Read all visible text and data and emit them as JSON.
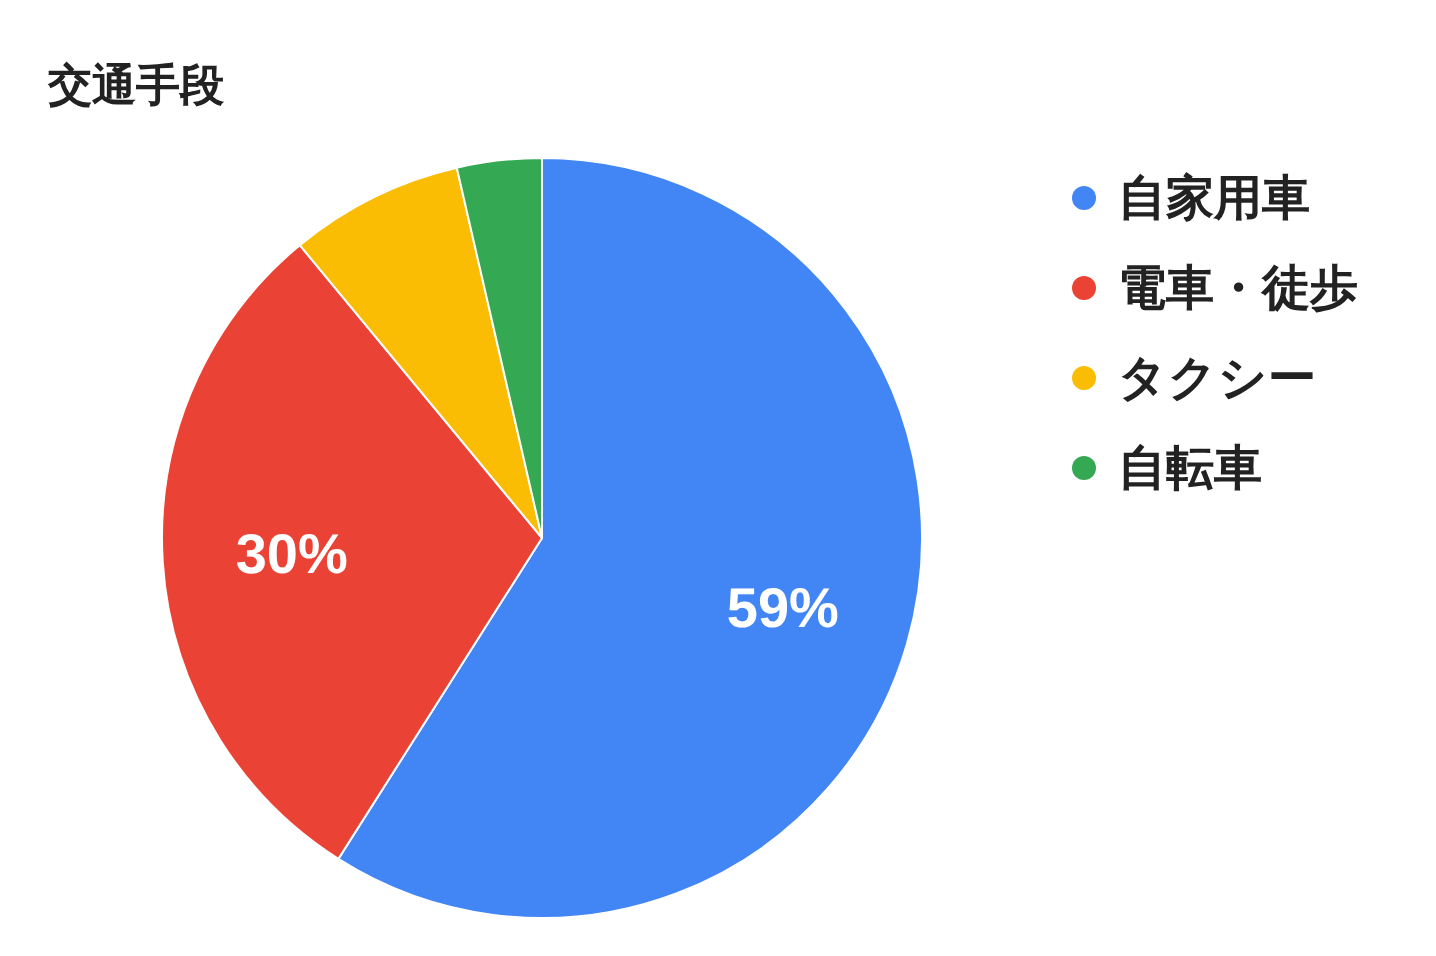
{
  "chart_data": {
    "type": "pie",
    "title": "交通手段",
    "categories": [
      "自家用車",
      "電車・徒歩",
      "タクシー",
      "自転車"
    ],
    "values": [
      59,
      30,
      7.4,
      3.6
    ],
    "colors": [
      "#4285f4",
      "#ea4335",
      "#fbbc04",
      "#34a853"
    ],
    "value_labels": [
      "59%",
      "30%",
      null,
      null
    ],
    "legend": "top right"
  }
}
